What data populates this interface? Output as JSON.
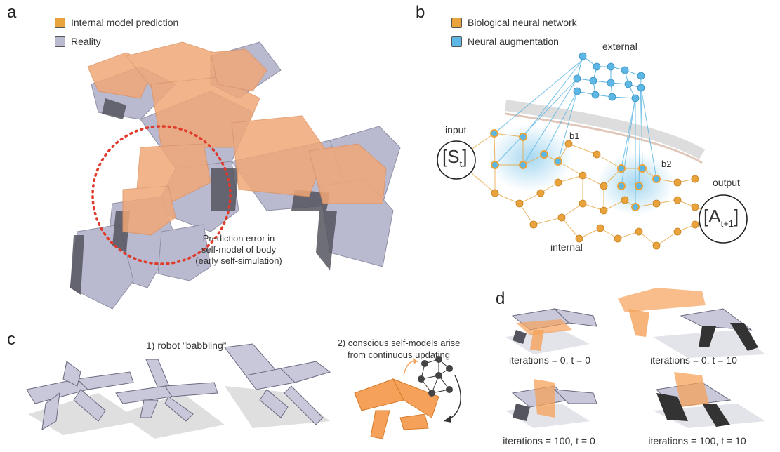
{
  "panels": {
    "a": {
      "letter": "a",
      "legend": [
        {
          "label": "Internal model prediction",
          "color": "#E8A33D"
        },
        {
          "label": "Reality",
          "color": "#B9B9CF"
        }
      ],
      "annotation_lines": [
        "Prediction error in",
        "self-model of body",
        "(early self-simulation)"
      ]
    },
    "b": {
      "letter": "b",
      "legend": [
        {
          "label": "Biological neural network",
          "color": "#E8A33D"
        },
        {
          "label": "Neural augmentation",
          "color": "#5DB7E4"
        }
      ],
      "labels": {
        "external": "external",
        "input": "input",
        "output": "output",
        "internal": "internal",
        "b1": "b1",
        "b2": "b2",
        "state_main": "[S",
        "state_sub": "t",
        "state_close": "]",
        "action_main": "[A",
        "action_sub": "t+1",
        "action_close": "]"
      }
    },
    "c": {
      "letter": "c",
      "babbling_label": "1) robot ”babbling”",
      "conscious_lines": [
        "2) conscious self-models arise",
        "from continuous updating"
      ]
    },
    "d": {
      "letter": "d",
      "captions": [
        "iterations = 0, t = 0",
        "iterations = 0, t = 10",
        "iterations = 100, t = 0",
        "iterations = 100, t = 10"
      ]
    }
  },
  "colors": {
    "orange": "#E8A33D",
    "orange_model": "#F0A877",
    "blue": "#5DB7E4",
    "reality": "#B9B9CF",
    "reality_dark": "#55555F",
    "dotted_red": "#E03A2A"
  }
}
